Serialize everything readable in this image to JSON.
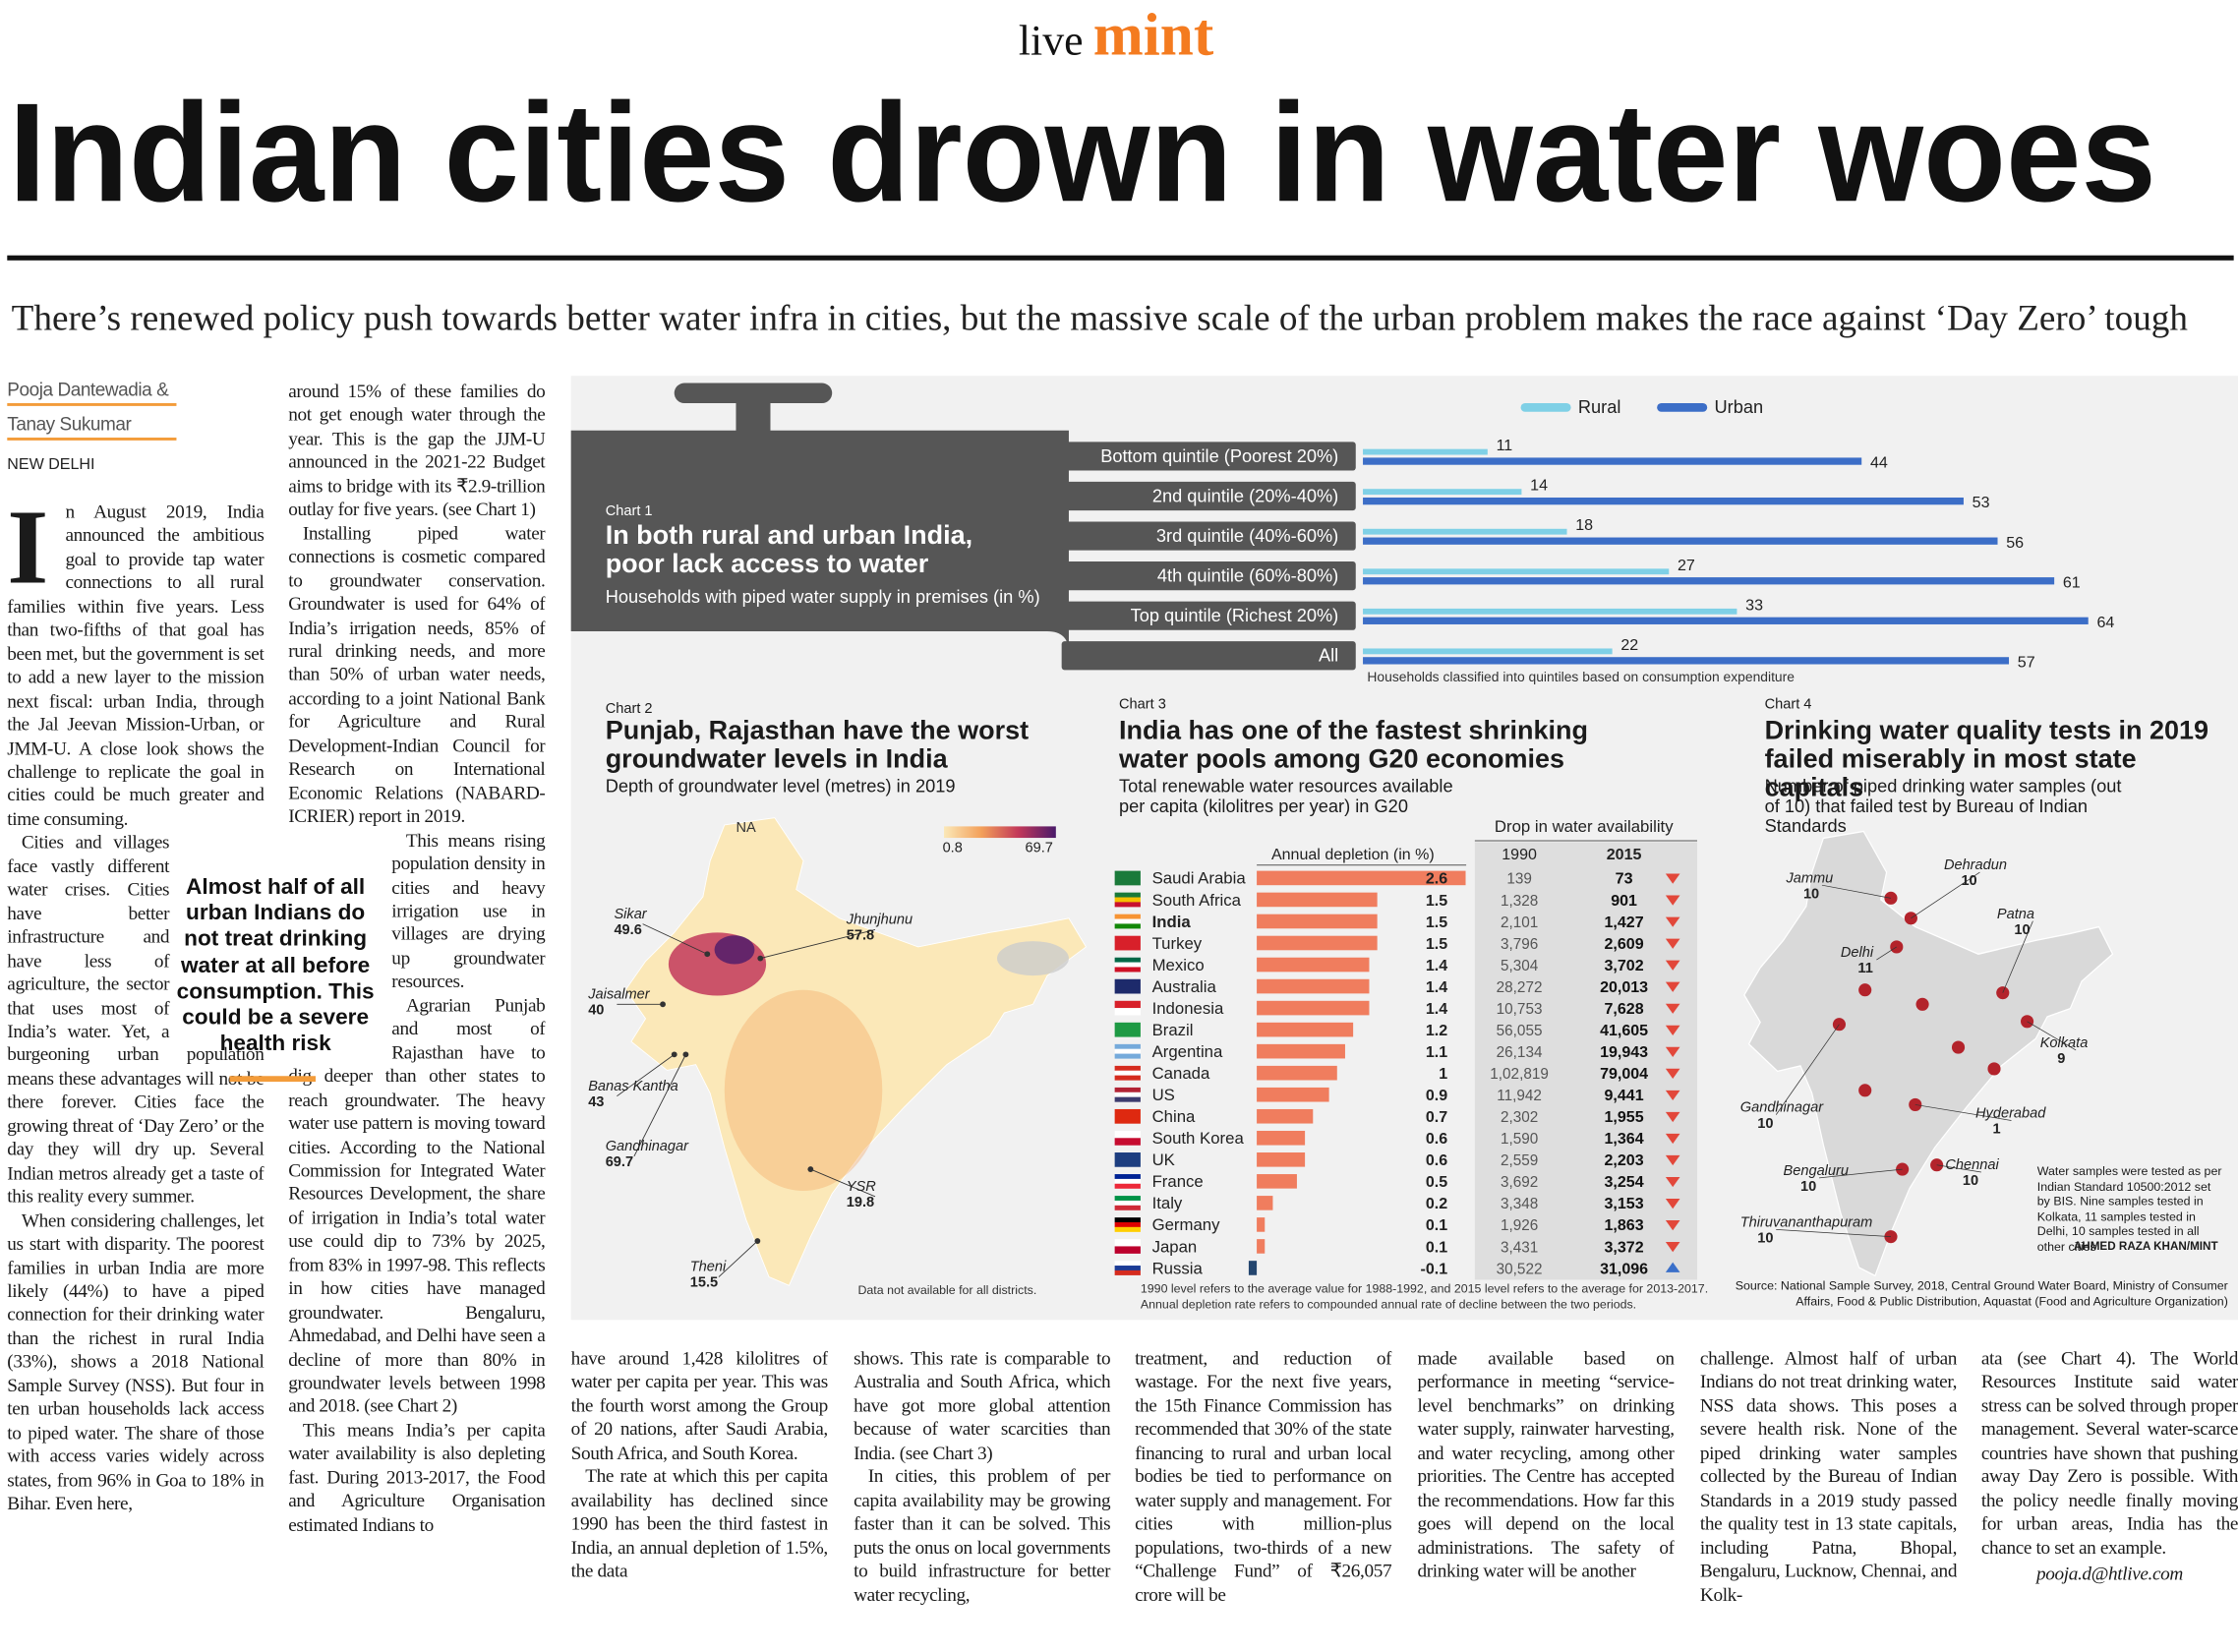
{
  "masthead": {
    "prefix": "live",
    "brand": "mint"
  },
  "headline": "Indian cities drown in water woes",
  "standfirst": "There’s renewed policy push towards better water infra in cities, but the massive scale of the urban problem makes the race against ‘Day Zero’ tough",
  "byline": {
    "authors": [
      "Pooja Dantewadia &",
      "Tanay Sukumar"
    ],
    "dateline": "NEW DELHI"
  },
  "article": {
    "pull_quote": "Almost half of all urban Indians do not treat drinking water at all before consumption. This could be a severe health risk",
    "columns": [
      [
        "In August 2019, India announced the ambitious goal to provide tap water connections to all rural families within five years. Less than two-fifths of that goal has been met, but the government is set to add a new layer to the mission next fiscal: urban India, through the Jal Jeevan Mission-Urban, or JMM-U. A close look shows the challenge to replicate the goal in cities could be much greater and time consuming.",
        "Cities and villages face vastly different water crises. Cities have better infrastructure and have less of agriculture, the sector that uses most of India’s water. Yet, a burgeoning urban population means these advantages will not be there forever. Cities face the growing threat of ‘Day Zero’ or the day they will dry up. Several Indian metros already get a taste of this reality every summer.",
        "When considering challenges, let us start with disparity. The poorest families in urban India are more likely (44%) to have a piped connection for their drinking water than the richest in rural India (33%), shows a 2018 National Sample Survey (NSS). But four in ten urban households lack access to piped water. The share of those with access varies widely across states, from 96% in Goa to 18% in Bihar. Even here,"
      ],
      [
        "around 15% of these families do not get enough water through the year. This is the gap the JJM-U announced in the 2021-22 Budget aims to bridge with its ₹2.9-trillion outlay for five years. (see Chart 1)",
        "Installing piped water connections is cosmetic compared to groundwater conservation. Groundwater is used for 64% of India’s irrigation needs, 85% of rural drinking needs, and more than 50% of urban water needs, according to a joint National Bank for Agriculture and Rural Development-Indian Council for Research on International Economic Relations (NABARD-ICRIER) report in 2019.",
        "This means rising population density in cities and heavy irrigation use in villages are drying up groundwater resources.",
        "Agrarian Punjab and most of Rajasthan have to dig deeper than other states to reach groundwater. The heavy water use pattern is moving toward cities. According to the National Commission for Integrated Water Resources Development, the share of irrigation in India’s total water use could dip to 73% by 2025, from 83% in 1997-98. This reflects in how cities have managed groundwater. Bengaluru, Ahmedabad, and Delhi have seen a decline of more than 80% in groundwater levels between 1998 and 2018. (see Chart 2)",
        "This means India’s per capita water availability is also depleting fast. During 2013-2017, the Food and Agriculture Organisation estimated Indians to"
      ],
      [
        "have around 1,428 kilolitres of water per capita per year. This was the fourth worst among the Group of 20 nations, after Saudi Arabia, South Africa, and South Korea.",
        "The rate at which this per capita availability has declined since 1990 has been the third fastest in India, an annual depletion of 1.5%, the data"
      ],
      [
        "shows. This rate is comparable to Australia and South Africa, which have got more global attention because of water scarcities than India. (see Chart 3)",
        "In cities, this problem of per capita availability may be growing faster than it can be solved. This puts the onus on local governments to build infrastructure for better water recycling,"
      ],
      [
        "treatment, and reduction of wastage. For the next five years, the 15th Finance Commission has recommended that 30% of the state financing to rural and urban local bodies be tied to performance on water supply and management. For cities with million-plus populations, two-thirds of a new “Challenge Fund” of ₹26,057 crore will be"
      ],
      [
        "made available based on performance in meeting “service-level benchmarks” on drinking water supply, rainwater harvesting, and water recycling, among other priorities. The Centre has accepted the recommendations. How far this goes will depend on the local administrations. The safety of drinking water will be another"
      ],
      [
        "challenge. Almost half of urban Indians do not treat drinking water, NSS data shows. This poses a severe health risk. None of the piped drinking water samples collected by the Bureau of Indian Standards in a 2019 study passed the quality test in 13 state capitals, including Patna, Bhopal, Bengaluru, Lucknow, Chennai, and Kolk-"
      ],
      [
        "ata (see Chart 4). The World Resources Institute said water stress can be solved through proper management. Several water-scarce countries have shown that pushing away Day Zero is possible. With the policy needle finally moving for urban areas, India has the chance to set an example."
      ]
    ],
    "email": "pooja.d@htlive.com"
  },
  "chart_data": [
    {
      "type": "bar",
      "orientation": "horizontal",
      "label": "Chart 1",
      "title": "In both rural and urban India, poor lack access to water",
      "subtitle": "Households with piped water supply in premises (in %)",
      "categories": [
        "Bottom quintile (Poorest 20%)",
        "2nd quintile (20%-40%)",
        "3rd quintile (40%-60%)",
        "4th quintile (60%-80%)",
        "Top quintile (Richest 20%)",
        "All"
      ],
      "series": [
        {
          "name": "Rural",
          "color": "#7fd0e6",
          "values": [
            11,
            14,
            18,
            27,
            33,
            22
          ]
        },
        {
          "name": "Urban",
          "color": "#3c6ec7",
          "values": [
            44,
            53,
            56,
            61,
            64,
            57
          ]
        }
      ],
      "note": "Households classified into quintiles based on consumption expenditure"
    },
    {
      "type": "map",
      "label": "Chart 2",
      "title": "Punjab, Rajasthan have the worst groundwater levels in India",
      "subtitle": "Depth of groundwater level (metres) in 2019",
      "scale": {
        "min": 0.8,
        "max": 69.7,
        "colors": [
          "#fbe8b8",
          "#f3a05a",
          "#c2385a",
          "#4a1a6a"
        ]
      },
      "missing_label": "NA",
      "districts": [
        {
          "name": "Sikar",
          "value": 49.6
        },
        {
          "name": "Jhunjhunu",
          "value": 57.8
        },
        {
          "name": "Jaisalmer",
          "value": 40
        },
        {
          "name": "Banas Kantha",
          "value": 43
        },
        {
          "name": "Gandhinagar",
          "value": 69.7
        },
        {
          "name": "YSR",
          "value": 19.8
        },
        {
          "name": "Theni",
          "value": 15.5
        }
      ],
      "note": "Data not available for all districts."
    },
    {
      "type": "bar",
      "orientation": "horizontal",
      "label": "Chart 3",
      "title": "India has one of the fastest shrinking water pools among G20 economies",
      "subtitle": "Total renewable water resources available per capita (kilolitres per year) in G20",
      "value_label": "Annual depletion (in %)",
      "color": "#f07d5e",
      "negative_color": "#24466f",
      "highlight": "India",
      "categories": [
        "Saudi Arabia",
        "South Africa",
        "India",
        "Turkey",
        "Mexico",
        "Australia",
        "Indonesia",
        "Brazil",
        "Argentina",
        "Canada",
        "US",
        "China",
        "South Korea",
        "UK",
        "France",
        "Italy",
        "Germany",
        "Japan",
        "Russia"
      ],
      "values": [
        2.6,
        1.5,
        1.5,
        1.5,
        1.4,
        1.4,
        1.4,
        1.2,
        1.1,
        1,
        0.9,
        0.7,
        0.6,
        0.6,
        0.5,
        0.2,
        0.1,
        0.1,
        -0.1
      ],
      "table": {
        "title": "Drop in water availability",
        "columns": [
          "1990",
          "2015"
        ],
        "rows": [
          [
            "139",
            "73"
          ],
          [
            "1,328",
            "901"
          ],
          [
            "2,101",
            "1,427"
          ],
          [
            "3,796",
            "2,609"
          ],
          [
            "5,304",
            "3,702"
          ],
          [
            "28,272",
            "20,013"
          ],
          [
            "10,753",
            "7,628"
          ],
          [
            "56,055",
            "41,605"
          ],
          [
            "26,134",
            "19,943"
          ],
          [
            "1,02,819",
            "79,004"
          ],
          [
            "11,942",
            "9,441"
          ],
          [
            "2,302",
            "1,955"
          ],
          [
            "1,590",
            "1,364"
          ],
          [
            "2,559",
            "2,203"
          ],
          [
            "3,692",
            "3,254"
          ],
          [
            "3,348",
            "3,153"
          ],
          [
            "1,926",
            "1,863"
          ],
          [
            "3,431",
            "3,372"
          ],
          [
            "30,522",
            "31,096"
          ]
        ],
        "trend": [
          "down",
          "down",
          "down",
          "down",
          "down",
          "down",
          "down",
          "down",
          "down",
          "down",
          "down",
          "down",
          "down",
          "down",
          "down",
          "down",
          "down",
          "down",
          "up"
        ]
      },
      "notes": [
        "1990 level refers to the average value for 1988-1992, and 2015 level refers to the average for 2013-2017.",
        "Annual depletion rate refers to compounded annual rate of decline between the two periods."
      ]
    },
    {
      "type": "map",
      "label": "Chart 4",
      "title": "Drinking water quality tests in 2019 failed miserably in most state capitals",
      "subtitle": "Number of piped drinking water samples (out of 10) that failed test by Bureau of Indian Standards",
      "cities": [
        {
          "name": "Jammu",
          "value": 10
        },
        {
          "name": "Dehradun",
          "value": 10
        },
        {
          "name": "Patna",
          "value": 10
        },
        {
          "name": "Delhi",
          "value": 11
        },
        {
          "name": "Kolkata",
          "value": 9
        },
        {
          "name": "Gandhinagar",
          "value": 10
        },
        {
          "name": "Hyderabad",
          "value": 1
        },
        {
          "name": "Bengaluru",
          "value": 10
        },
        {
          "name": "Chennai",
          "value": 10
        },
        {
          "name": "Thiruvananthapuram",
          "value": 10
        }
      ],
      "note": "Water samples were tested as per Indian Standard 10500:2012 set by BIS. Nine samples tested in Kolkata, 11 samples tested in Delhi, 10 samples tested in all other cities",
      "source": "Source: National Sample Survey, 2018, Central Ground Water Board, Ministry of Consumer Affairs, Food & Public Distribution, Aquastat (Food and Agriculture Organization)"
    }
  ],
  "credit": "AHMED RAZA KHAN/MINT"
}
